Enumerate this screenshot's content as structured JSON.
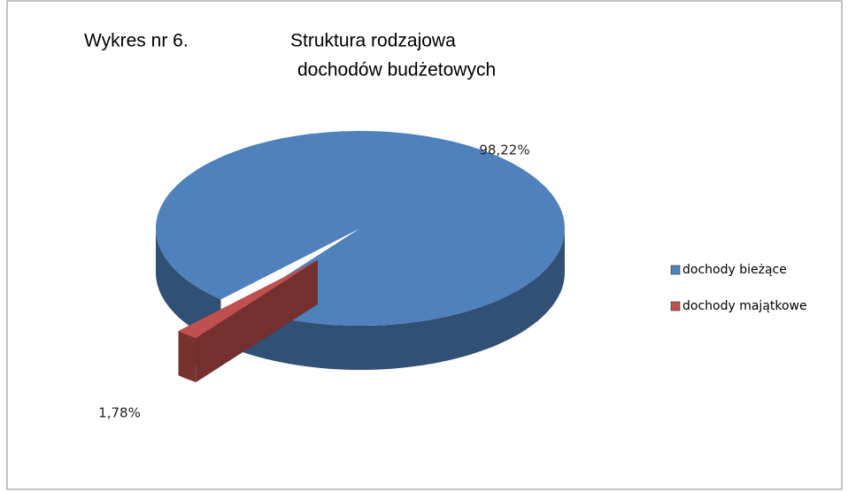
{
  "chart_data": {
    "type": "pie",
    "chart_number": "Wykres nr 6.",
    "title": [
      "Struktura rodzajowa",
      "dochodów budżetowych"
    ],
    "categories": [
      "dochody bieżące",
      "dochody majątkowe"
    ],
    "values": [
      98.22,
      1.78
    ],
    "value_labels": [
      "98,22%",
      "1,78%"
    ],
    "colors": [
      "#4f81bd",
      "#c0504d"
    ],
    "legend": "right",
    "three_d": true
  }
}
